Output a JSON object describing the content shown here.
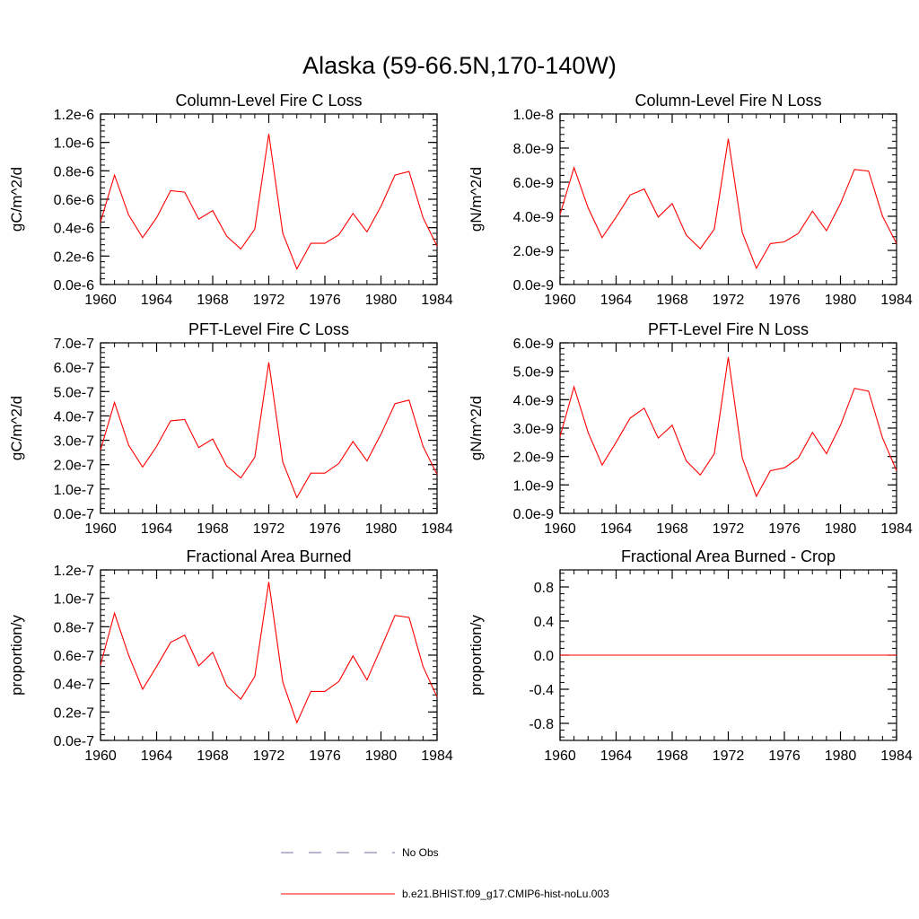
{
  "figure": {
    "title": "Alaska (59-66.5N,170-140W)"
  },
  "legend": {
    "entries": [
      {
        "label": "No Obs",
        "color": "#6f6fa8",
        "dash": true
      },
      {
        "label": "b.e21.BHIST.f09_g17.CMIP6-hist-noLu.003",
        "color": "#ff0000",
        "dash": false
      }
    ]
  },
  "chart_data": [
    {
      "type": "line",
      "title": "Column-Level Fire C Loss",
      "ylabel": "gC/m^2/d",
      "xlim": [
        1960,
        1984
      ],
      "ylim": [
        0,
        1.2e-06
      ],
      "xticks": [
        1960,
        1964,
        1968,
        1972,
        1976,
        1980,
        1984
      ],
      "xtick_labels": [
        "1960",
        "1964",
        "1968",
        "1972",
        "1976",
        "1980",
        "1984"
      ],
      "yticks": [
        0,
        2e-07,
        4e-07,
        6e-07,
        8e-07,
        1e-06,
        1.2e-06
      ],
      "ytick_labels": [
        "0.0e-6",
        "0.2e-6",
        "0.4e-6",
        "0.6e-6",
        "0.8e-6",
        "1.0e-6",
        "1.2e-6"
      ],
      "x": [
        1960,
        1961,
        1962,
        1963,
        1964,
        1965,
        1966,
        1967,
        1968,
        1969,
        1970,
        1971,
        1972,
        1973,
        1974,
        1975,
        1976,
        1977,
        1978,
        1979,
        1980,
        1981,
        1982,
        1983,
        1984
      ],
      "series": [
        {
          "color": "#ff0000",
          "values": [
            4.4e-07,
            7.7e-07,
            4.9e-07,
            3.3e-07,
            4.7e-07,
            6.6e-07,
            6.5e-07,
            4.6e-07,
            5.2e-07,
            3.4e-07,
            2.5e-07,
            3.9e-07,
            1.06e-06,
            3.6e-07,
            1.1e-07,
            2.9e-07,
            2.9e-07,
            3.5e-07,
            5e-07,
            3.7e-07,
            5.5e-07,
            7.7e-07,
            7.95e-07,
            4.7e-07,
            2.7e-07
          ]
        }
      ]
    },
    {
      "type": "line",
      "title": "Column-Level Fire N Loss",
      "ylabel": "gN/m^2/d",
      "xlim": [
        1960,
        1984
      ],
      "ylim": [
        0,
        1e-08
      ],
      "xticks": [
        1960,
        1964,
        1968,
        1972,
        1976,
        1980,
        1984
      ],
      "xtick_labels": [
        "1960",
        "1964",
        "1968",
        "1972",
        "1976",
        "1980",
        "1984"
      ],
      "yticks": [
        0,
        2e-09,
        4e-09,
        6e-09,
        8e-09,
        1e-08
      ],
      "ytick_labels": [
        "0.0e-9",
        "2.0e-9",
        "4.0e-9",
        "6.0e-9",
        "8.0e-9",
        "1.0e-8"
      ],
      "x": [
        1960,
        1961,
        1962,
        1963,
        1964,
        1965,
        1966,
        1967,
        1968,
        1969,
        1970,
        1971,
        1972,
        1973,
        1974,
        1975,
        1976,
        1977,
        1978,
        1979,
        1980,
        1981,
        1982,
        1983,
        1984
      ],
      "series": [
        {
          "color": "#ff0000",
          "values": [
            4.1e-09,
            6.85e-09,
            4.5e-09,
            2.75e-09,
            3.95e-09,
            5.25e-09,
            5.6e-09,
            3.95e-09,
            4.75e-09,
            2.9e-09,
            2.1e-09,
            3.25e-09,
            8.55e-09,
            3.05e-09,
            9.5e-10,
            2.4e-09,
            2.5e-09,
            3e-09,
            4.3e-09,
            3.15e-09,
            4.75e-09,
            6.75e-09,
            6.65e-09,
            4e-09,
            2.4e-09
          ]
        }
      ]
    },
    {
      "type": "line",
      "title": "PFT-Level Fire C Loss",
      "ylabel": "gC/m^2/d",
      "xlim": [
        1960,
        1984
      ],
      "ylim": [
        0,
        7e-07
      ],
      "xticks": [
        1960,
        1964,
        1968,
        1972,
        1976,
        1980,
        1984
      ],
      "xtick_labels": [
        "1960",
        "1964",
        "1968",
        "1972",
        "1976",
        "1980",
        "1984"
      ],
      "yticks": [
        0,
        1e-07,
        2e-07,
        3e-07,
        4e-07,
        5e-07,
        6e-07,
        7e-07
      ],
      "ytick_labels": [
        "0.0e-7",
        "1.0e-7",
        "2.0e-7",
        "3.0e-7",
        "4.0e-7",
        "5.0e-7",
        "6.0e-7",
        "7.0e-7"
      ],
      "x": [
        1960,
        1961,
        1962,
        1963,
        1964,
        1965,
        1966,
        1967,
        1968,
        1969,
        1970,
        1971,
        1972,
        1973,
        1974,
        1975,
        1976,
        1977,
        1978,
        1979,
        1980,
        1981,
        1982,
        1983,
        1984
      ],
      "series": [
        {
          "color": "#ff0000",
          "values": [
            2.6e-07,
            4.55e-07,
            2.8e-07,
            1.9e-07,
            2.75e-07,
            3.8e-07,
            3.85e-07,
            2.7e-07,
            3.05e-07,
            1.95e-07,
            1.45e-07,
            2.3e-07,
            6.2e-07,
            2.1e-07,
            6.5e-08,
            1.65e-07,
            1.65e-07,
            2.05e-07,
            2.95e-07,
            2.15e-07,
            3.25e-07,
            4.5e-07,
            4.65e-07,
            2.75e-07,
            1.6e-07
          ]
        }
      ]
    },
    {
      "type": "line",
      "title": "PFT-Level Fire N Loss",
      "ylabel": "gN/m^2/d",
      "xlim": [
        1960,
        1984
      ],
      "ylim": [
        0,
        6e-09
      ],
      "xticks": [
        1960,
        1964,
        1968,
        1972,
        1976,
        1980,
        1984
      ],
      "xtick_labels": [
        "1960",
        "1964",
        "1968",
        "1972",
        "1976",
        "1980",
        "1984"
      ],
      "yticks": [
        0,
        1e-09,
        2e-09,
        3e-09,
        4e-09,
        5e-09,
        6e-09
      ],
      "ytick_labels": [
        "0.0e-9",
        "1.0e-9",
        "2.0e-9",
        "3.0e-9",
        "4.0e-9",
        "5.0e-9",
        "6.0e-9"
      ],
      "x": [
        1960,
        1961,
        1962,
        1963,
        1964,
        1965,
        1966,
        1967,
        1968,
        1969,
        1970,
        1971,
        1972,
        1973,
        1974,
        1975,
        1976,
        1977,
        1978,
        1979,
        1980,
        1981,
        1982,
        1983,
        1984
      ],
      "series": [
        {
          "color": "#ff0000",
          "values": [
            2.7e-09,
            4.45e-09,
            2.85e-09,
            1.7e-09,
            2.5e-09,
            3.35e-09,
            3.7e-09,
            2.65e-09,
            3.1e-09,
            1.85e-09,
            1.35e-09,
            2.1e-09,
            5.5e-09,
            1.95e-09,
            6e-10,
            1.5e-09,
            1.6e-09,
            1.95e-09,
            2.85e-09,
            2.1e-09,
            3.1e-09,
            4.4e-09,
            4.3e-09,
            2.65e-09,
            1.5e-09
          ]
        }
      ]
    },
    {
      "type": "line",
      "title": "Fractional Area Burned",
      "ylabel": "proportion/y",
      "xlim": [
        1960,
        1984
      ],
      "ylim": [
        0,
        1.2e-07
      ],
      "xticks": [
        1960,
        1964,
        1968,
        1972,
        1976,
        1980,
        1984
      ],
      "xtick_labels": [
        "1960",
        "1964",
        "1968",
        "1972",
        "1976",
        "1980",
        "1984"
      ],
      "yticks": [
        0,
        2e-08,
        4e-08,
        6e-08,
        8e-08,
        1e-07,
        1.2e-07
      ],
      "ytick_labels": [
        "0.0e-7",
        "0.2e-7",
        "0.4e-7",
        "0.6e-7",
        "0.8e-7",
        "1.0e-7",
        "1.2e-7"
      ],
      "x": [
        1960,
        1961,
        1962,
        1963,
        1964,
        1965,
        1966,
        1967,
        1968,
        1969,
        1970,
        1971,
        1972,
        1973,
        1974,
        1975,
        1976,
        1977,
        1978,
        1979,
        1980,
        1981,
        1982,
        1983,
        1984
      ],
      "series": [
        {
          "color": "#ff0000",
          "values": [
            5.3e-08,
            8.95e-08,
            6e-08,
            3.6e-08,
            5.2e-08,
            6.9e-08,
            7.4e-08,
            5.25e-08,
            6.2e-08,
            3.85e-08,
            2.9e-08,
            4.5e-08,
            1.115e-07,
            4.1e-08,
            1.25e-08,
            3.45e-08,
            3.45e-08,
            4.15e-08,
            5.95e-08,
            4.25e-08,
            6.5e-08,
            8.8e-08,
            8.65e-08,
            5.2e-08,
            3.05e-08
          ]
        }
      ]
    },
    {
      "type": "line",
      "title": "Fractional Area Burned - Crop",
      "ylabel": "proportion/y",
      "xlim": [
        1960,
        1984
      ],
      "ylim": [
        -1.0,
        1.0
      ],
      "xticks": [
        1960,
        1964,
        1968,
        1972,
        1976,
        1980,
        1984
      ],
      "xtick_labels": [
        "1960",
        "1964",
        "1968",
        "1972",
        "1976",
        "1980",
        "1984"
      ],
      "yticks": [
        -0.8,
        -0.4,
        0,
        0.4,
        0.8
      ],
      "ytick_labels": [
        "-0.8",
        "-0.4",
        "0.0",
        "0.4",
        "0.8"
      ],
      "x": [
        1960,
        1961,
        1962,
        1963,
        1964,
        1965,
        1966,
        1967,
        1968,
        1969,
        1970,
        1971,
        1972,
        1973,
        1974,
        1975,
        1976,
        1977,
        1978,
        1979,
        1980,
        1981,
        1982,
        1983,
        1984
      ],
      "series": [
        {
          "color": "#ff0000",
          "values": [
            0,
            0,
            0,
            0,
            0,
            0,
            0,
            0,
            0,
            0,
            0,
            0,
            0,
            0,
            0,
            0,
            0,
            0,
            0,
            0,
            0,
            0,
            0,
            0,
            0
          ]
        }
      ]
    }
  ]
}
